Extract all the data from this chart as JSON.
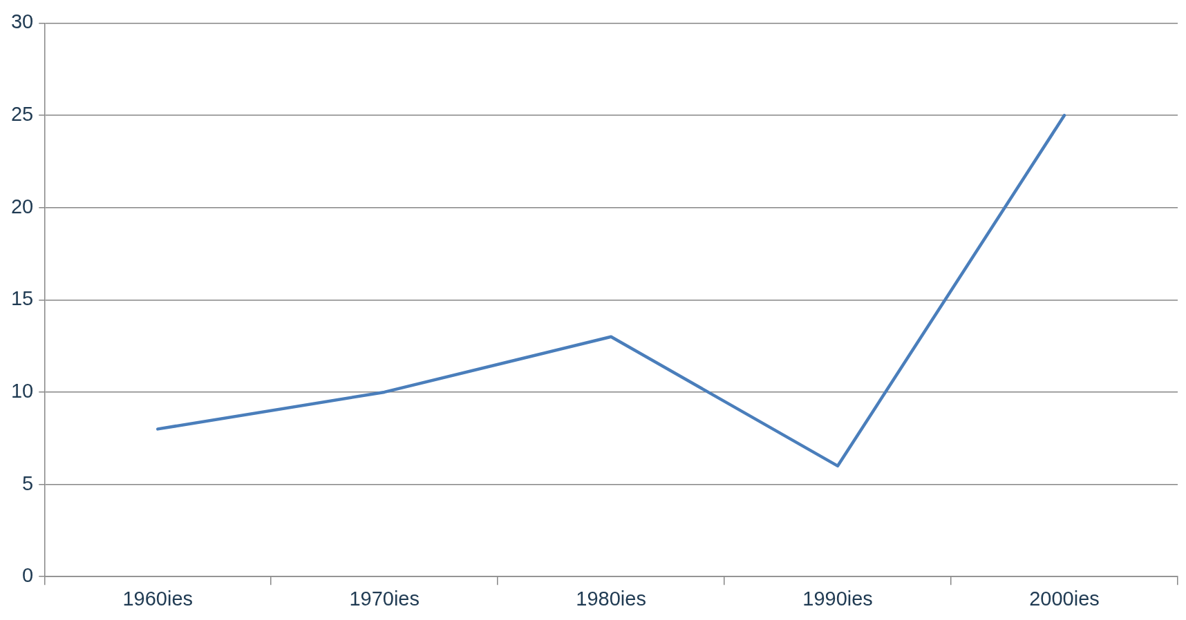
{
  "chart_data": {
    "type": "line",
    "categories": [
      "1960ies",
      "1970ies",
      "1980ies",
      "1990ies",
      "2000ies"
    ],
    "series": [
      {
        "color": "#4a7ebb",
        "values": [
          8,
          10,
          13,
          6,
          25
        ]
      }
    ],
    "ylim": [
      0,
      30
    ],
    "yticks": [
      0,
      5,
      10,
      15,
      20,
      25,
      30
    ],
    "grid": "y",
    "legend": false,
    "marker": "none",
    "line_style": "solid"
  }
}
